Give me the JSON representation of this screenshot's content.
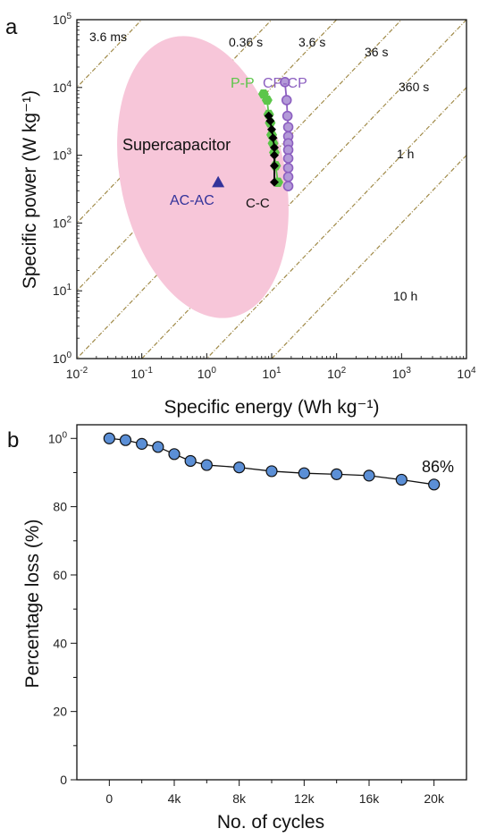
{
  "chart_data": [
    {
      "panel": "a",
      "type": "scatter",
      "xlabel": "Specific energy (Wh kg⁻¹)",
      "ylabel": "Specific power (W kg⁻¹)",
      "xscale": "log",
      "yscale": "log",
      "xlim": [
        0.01,
        10000
      ],
      "ylim": [
        1,
        100000
      ],
      "x_ticks": [
        "10-2",
        "10-1",
        "100",
        "101",
        "102",
        "103",
        "104"
      ],
      "y_ticks": [
        "100",
        "101",
        "102",
        "103",
        "104",
        "105"
      ],
      "region": {
        "label": "Supercapacitor",
        "color": "#f7c6d9"
      },
      "iso_time_lines": [
        "3.6 ms",
        "0.36 s",
        "3.6 s",
        "36 s",
        "360 s",
        "1 h",
        "10 h"
      ],
      "series": [
        {
          "name": "P-P",
          "color": "#5cc64a",
          "marker": "hexagon",
          "x": [
            7.5,
            8.5,
            9.0,
            9.5,
            10.0,
            10.5,
            11.0,
            11.5,
            12.5
          ],
          "y": [
            8000,
            6500,
            4000,
            3000,
            2000,
            1500,
            1100,
            700,
            400
          ]
        },
        {
          "name": "CP-CP",
          "color": "#8c5fc0",
          "marker": "circle",
          "x": [
            16,
            17,
            17.5,
            18,
            18,
            18,
            18,
            18,
            18,
            18,
            18
          ],
          "y": [
            12000,
            6500,
            3800,
            2600,
            1900,
            1500,
            1200,
            900,
            650,
            480,
            350
          ]
        },
        {
          "name": "C-C",
          "color": "#000000",
          "marker": "diamond",
          "x": [
            9.0,
            9.5,
            10.0,
            10.5,
            11.0,
            11.0,
            11.0,
            11.0
          ],
          "y": [
            3800,
            3200,
            2400,
            1800,
            1300,
            1000,
            700,
            400
          ]
        },
        {
          "name": "AC-AC",
          "color": "#33339a",
          "marker": "triangle",
          "x": [
            1.5
          ],
          "y": [
            400
          ]
        }
      ]
    },
    {
      "panel": "b",
      "type": "line",
      "xlabel": "No. of cycles",
      "ylabel": "Percentage loss (%)",
      "xlim": [
        -2000,
        22000
      ],
      "ylim": [
        0,
        104
      ],
      "x_ticks": [
        "0",
        "4k",
        "8k",
        "12k",
        "16k",
        "20k"
      ],
      "y_ticks": [
        "0",
        "20",
        "40",
        "60",
        "80",
        "100"
      ],
      "annotation": "86%",
      "marker_color": "#5b8fd6",
      "x": [
        0,
        1000,
        2000,
        3000,
        4000,
        5000,
        6000,
        8000,
        10000,
        12000,
        14000,
        16000,
        18000,
        20000
      ],
      "y": [
        100,
        99.5,
        98.4,
        97.5,
        95.4,
        93.4,
        92.2,
        91.5,
        90.4,
        89.8,
        89.5,
        89.1,
        87.9,
        86.5
      ]
    }
  ]
}
